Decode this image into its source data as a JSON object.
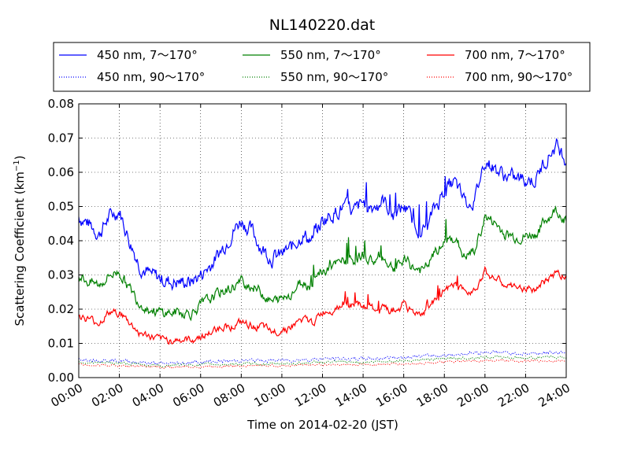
{
  "chart_data": {
    "type": "line",
    "title": "NL140220.dat",
    "xlabel": "Time on 2014-02-20 (JST)",
    "ylabel_main": "Scattering Coefficient (km",
    "ylabel_exp": "−1",
    "ylabel_close": ")",
    "xlim": [
      0,
      24
    ],
    "ylim": [
      0.0,
      0.08
    ],
    "grid": true,
    "legend_position": "top",
    "x_ticks": [
      0,
      2,
      4,
      6,
      8,
      10,
      12,
      14,
      16,
      18,
      20,
      22,
      24
    ],
    "x_tick_labels": [
      "00:00",
      "02:00",
      "04:00",
      "06:00",
      "08:00",
      "10:00",
      "12:00",
      "14:00",
      "16:00",
      "18:00",
      "20:00",
      "22:00",
      "24:00"
    ],
    "y_ticks": [
      0,
      0.01,
      0.02,
      0.03,
      0.04,
      0.05,
      0.06,
      0.07,
      0.08
    ],
    "y_tick_labels": [
      "0.00",
      "0.01",
      "0.02",
      "0.03",
      "0.04",
      "0.05",
      "0.06",
      "0.07",
      "0.08"
    ],
    "series": [
      {
        "name": "450 nm, 7～170°",
        "color": "#0000ff",
        "style": "solid",
        "noise": 0.0018,
        "spikes": true,
        "x": [
          0,
          0.5,
          1,
          1.5,
          2,
          2.5,
          3,
          3.5,
          4,
          4.5,
          5,
          5.5,
          6,
          6.5,
          7,
          7.5,
          8,
          8.5,
          9,
          9.5,
          10,
          10.5,
          11,
          11.5,
          12,
          12.5,
          13,
          13.5,
          14,
          14.5,
          15,
          15.5,
          16,
          16.5,
          17,
          17.5,
          18,
          18.5,
          19,
          19.5,
          20,
          20.5,
          21,
          21.5,
          22,
          22.5,
          23,
          23.5,
          24
        ],
        "y": [
          0.047,
          0.045,
          0.042,
          0.047,
          0.049,
          0.04,
          0.033,
          0.03,
          0.029,
          0.028,
          0.028,
          0.028,
          0.03,
          0.033,
          0.037,
          0.042,
          0.046,
          0.043,
          0.038,
          0.035,
          0.036,
          0.038,
          0.042,
          0.04,
          0.046,
          0.048,
          0.05,
          0.048,
          0.051,
          0.05,
          0.052,
          0.047,
          0.05,
          0.045,
          0.043,
          0.049,
          0.055,
          0.057,
          0.051,
          0.052,
          0.064,
          0.061,
          0.059,
          0.058,
          0.058,
          0.058,
          0.064,
          0.068,
          0.064
        ]
      },
      {
        "name": "550 nm, 7～170°",
        "color": "#008000",
        "style": "solid",
        "noise": 0.0013,
        "spikes": true,
        "x": [
          0,
          0.5,
          1,
          1.5,
          2,
          2.5,
          3,
          3.5,
          4,
          4.5,
          5,
          5.5,
          6,
          6.5,
          7,
          7.5,
          8,
          8.5,
          9,
          9.5,
          10,
          10.5,
          11,
          11.5,
          12,
          12.5,
          13,
          13.5,
          14,
          14.5,
          15,
          15.5,
          16,
          16.5,
          17,
          17.5,
          18,
          18.5,
          19,
          19.5,
          20,
          20.5,
          21,
          21.5,
          22,
          22.5,
          23,
          23.5,
          24
        ],
        "y": [
          0.03,
          0.028,
          0.027,
          0.03,
          0.031,
          0.026,
          0.022,
          0.02,
          0.019,
          0.019,
          0.019,
          0.019,
          0.021,
          0.023,
          0.025,
          0.026,
          0.028,
          0.027,
          0.025,
          0.022,
          0.023,
          0.025,
          0.028,
          0.027,
          0.031,
          0.032,
          0.034,
          0.034,
          0.036,
          0.034,
          0.035,
          0.032,
          0.034,
          0.032,
          0.031,
          0.036,
          0.039,
          0.041,
          0.035,
          0.037,
          0.047,
          0.045,
          0.042,
          0.041,
          0.041,
          0.042,
          0.046,
          0.049,
          0.046
        ]
      },
      {
        "name": "700 nm, 7～170°",
        "color": "#ff0000",
        "style": "solid",
        "noise": 0.0009,
        "spikes": true,
        "x": [
          0,
          0.5,
          1,
          1.5,
          2,
          2.5,
          3,
          3.5,
          4,
          4.5,
          5,
          5.5,
          6,
          6.5,
          7,
          7.5,
          8,
          8.5,
          9,
          9.5,
          10,
          10.5,
          11,
          11.5,
          12,
          12.5,
          13,
          13.5,
          14,
          14.5,
          15,
          15.5,
          16,
          16.5,
          17,
          17.5,
          18,
          18.5,
          19,
          19.5,
          20,
          20.5,
          21,
          21.5,
          22,
          22.5,
          23,
          23.5,
          24
        ],
        "y": [
          0.018,
          0.017,
          0.016,
          0.019,
          0.019,
          0.016,
          0.013,
          0.012,
          0.011,
          0.011,
          0.011,
          0.011,
          0.012,
          0.013,
          0.015,
          0.015,
          0.016,
          0.015,
          0.015,
          0.013,
          0.014,
          0.015,
          0.017,
          0.016,
          0.019,
          0.02,
          0.022,
          0.021,
          0.021,
          0.02,
          0.02,
          0.019,
          0.021,
          0.019,
          0.019,
          0.022,
          0.025,
          0.027,
          0.025,
          0.026,
          0.031,
          0.029,
          0.027,
          0.026,
          0.026,
          0.026,
          0.028,
          0.031,
          0.029
        ]
      },
      {
        "name": "450 nm, 90～170°",
        "color": "#0000ff",
        "style": "dotted",
        "noise": 0.0004,
        "spikes": false,
        "x": [
          0,
          2,
          4,
          6,
          8,
          10,
          12,
          14,
          16,
          18,
          20,
          22,
          24
        ],
        "y": [
          0.0055,
          0.005,
          0.004,
          0.0045,
          0.005,
          0.005,
          0.0055,
          0.0055,
          0.006,
          0.0065,
          0.0075,
          0.007,
          0.0075
        ]
      },
      {
        "name": "550 nm, 90～170°",
        "color": "#008000",
        "style": "dotted",
        "noise": 0.0003,
        "spikes": false,
        "x": [
          0,
          2,
          4,
          6,
          8,
          10,
          12,
          14,
          16,
          18,
          20,
          22,
          24
        ],
        "y": [
          0.0045,
          0.0042,
          0.0035,
          0.0038,
          0.004,
          0.004,
          0.0045,
          0.0045,
          0.005,
          0.0055,
          0.006,
          0.0058,
          0.006
        ]
      },
      {
        "name": "700 nm, 90～170°",
        "color": "#ff0000",
        "style": "dotted",
        "noise": 0.00025,
        "spikes": false,
        "x": [
          0,
          2,
          4,
          6,
          8,
          10,
          12,
          14,
          16,
          18,
          20,
          22,
          24
        ],
        "y": [
          0.0038,
          0.0035,
          0.003,
          0.0032,
          0.0035,
          0.0035,
          0.0038,
          0.0038,
          0.004,
          0.0045,
          0.005,
          0.0048,
          0.005
        ]
      }
    ]
  }
}
